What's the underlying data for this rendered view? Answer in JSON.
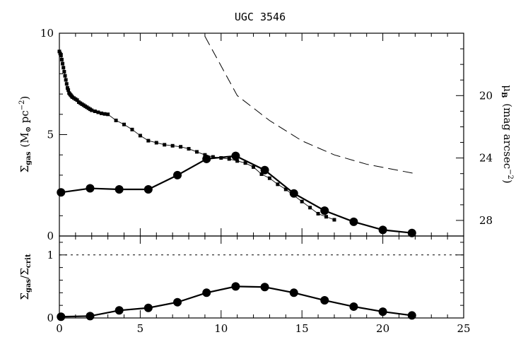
{
  "chart_data": [
    {
      "type": "line",
      "title": "UGC 3546",
      "xlim": [
        0,
        25
      ],
      "ylim": [
        0,
        10
      ],
      "y_ticks": [
        0,
        5,
        10
      ],
      "ylabel": {
        "main": "Σ",
        "sub": "gas",
        "unit": "(M",
        "unit_sub": "⊙",
        "unit_rest": " pc",
        "unit_sup": "−2",
        "unit_close": ")"
      },
      "ylabel_right": {
        "main": "μ",
        "sub": "B",
        "unit": " (mag arcsec",
        "unit_sup": "−2",
        "unit_close": ")"
      },
      "right_axis": {
        "label_ticks": [
          20,
          24,
          28
        ],
        "range_top_to_bottom": [
          16,
          29
        ]
      },
      "grid": false,
      "series": [
        {
          "style": "circles-thick-line",
          "x": [
            0.1,
            1.9,
            3.7,
            5.5,
            7.3,
            9.1,
            10.9,
            12.7,
            14.5,
            16.4,
            18.2,
            20.0,
            21.8
          ],
          "values": [
            2.15,
            2.35,
            2.3,
            2.3,
            3.0,
            3.8,
            3.95,
            3.25,
            2.1,
            1.25,
            0.7,
            0.3,
            0.15
          ]
        },
        {
          "style": "small-squares-thin-line",
          "x": [
            0.0,
            0.05,
            0.1,
            0.15,
            0.2,
            0.25,
            0.3,
            0.35,
            0.4,
            0.45,
            0.5,
            0.55,
            0.6,
            0.65,
            0.7,
            0.75,
            0.8,
            0.9,
            1.0,
            1.1,
            1.2,
            1.3,
            1.4,
            1.5,
            1.6,
            1.7,
            1.8,
            1.9,
            2.0,
            2.2,
            2.4,
            2.6,
            2.8,
            3.0,
            3.5,
            4.0,
            4.5,
            5.0,
            5.5,
            6.0,
            6.5,
            7.0,
            7.5,
            8.0,
            8.5,
            9.0,
            9.5,
            10.0,
            10.5,
            11.0,
            11.5,
            12.0,
            12.5,
            13.0,
            13.5,
            14.0,
            14.5,
            15.0,
            15.5,
            16.0,
            16.5,
            17.0
          ],
          "values": [
            9.1,
            9.0,
            8.9,
            8.7,
            8.5,
            8.3,
            8.1,
            7.9,
            7.7,
            7.5,
            7.3,
            7.2,
            7.05,
            7.0,
            6.95,
            6.9,
            6.85,
            6.8,
            6.75,
            6.7,
            6.6,
            6.55,
            6.5,
            6.45,
            6.4,
            6.35,
            6.3,
            6.25,
            6.2,
            6.15,
            6.1,
            6.05,
            6.02,
            6.0,
            5.7,
            5.5,
            5.25,
            4.95,
            4.7,
            4.6,
            4.5,
            4.45,
            4.4,
            4.3,
            4.15,
            4.0,
            3.9,
            3.85,
            3.8,
            3.7,
            3.6,
            3.4,
            3.05,
            2.85,
            2.55,
            2.3,
            2.0,
            1.7,
            1.4,
            1.1,
            0.95,
            0.8
          ]
        },
        {
          "style": "long-dash",
          "axis": "right",
          "x": [
            9.0,
            11.0,
            13.0,
            15.0,
            17.0,
            19.0,
            21.0,
            22.0
          ],
          "values": [
            16.2,
            20.0,
            21.6,
            22.9,
            23.8,
            24.4,
            24.8,
            25.0
          ]
        }
      ]
    },
    {
      "type": "line",
      "xlim": [
        0,
        25
      ],
      "ylim": [
        0,
        1.3
      ],
      "x_ticks": [
        0,
        5,
        10,
        15,
        20,
        25
      ],
      "y_ticks": [
        0,
        1
      ],
      "ylabel": {
        "main": "Σ",
        "sub": "gas",
        "sep": "/Σ",
        "sub2": "crit"
      },
      "reference_line": {
        "y": 1,
        "style": "dotted"
      },
      "grid": false,
      "series": [
        {
          "style": "circles-thick-line",
          "x": [
            0.1,
            1.9,
            3.7,
            5.5,
            7.3,
            9.1,
            10.9,
            12.7,
            14.5,
            16.4,
            18.2,
            20.0,
            21.8
          ],
          "values": [
            0.02,
            0.03,
            0.12,
            0.16,
            0.25,
            0.4,
            0.5,
            0.49,
            0.4,
            0.28,
            0.18,
            0.1,
            0.04
          ]
        }
      ]
    }
  ]
}
